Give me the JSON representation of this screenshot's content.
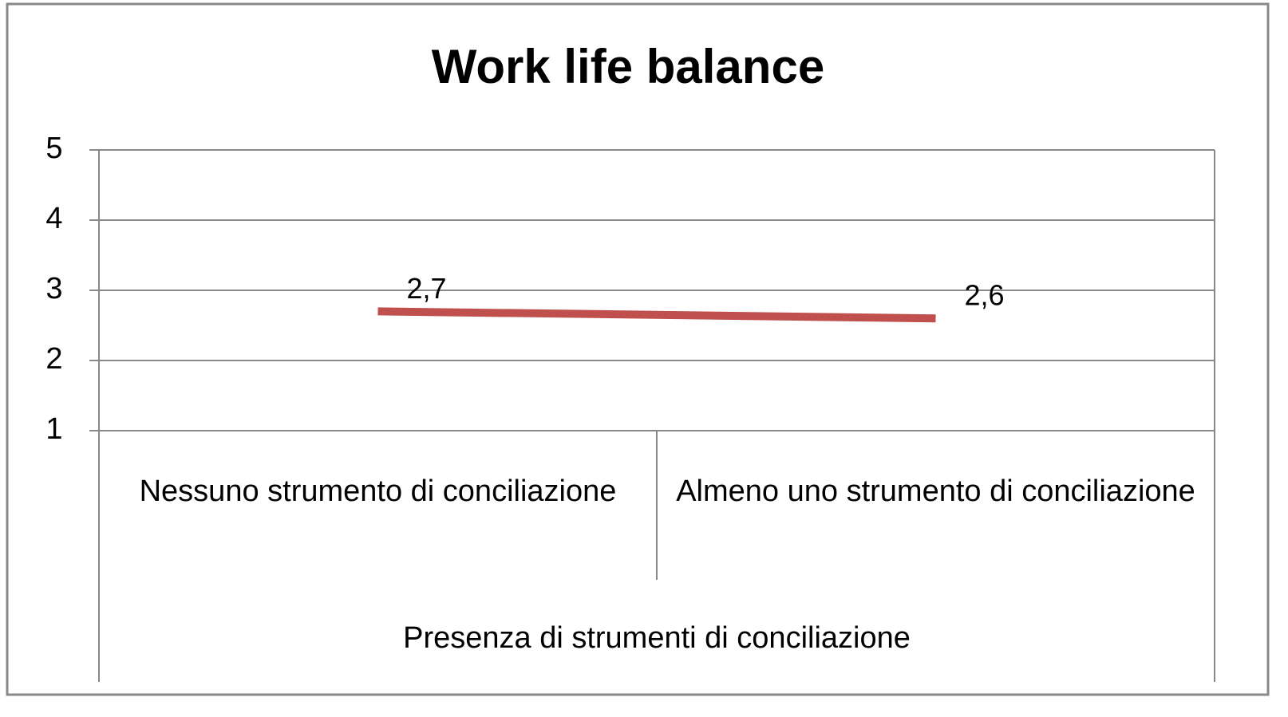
{
  "chart_data": {
    "type": "line",
    "title": "Work life balance",
    "x_label": "Presenza di strumenti di conciliazione",
    "categories": [
      "Nessuno strumento di conciliazione",
      "Almeno uno strumento di conciliazione"
    ],
    "values": [
      2.7,
      2.6
    ],
    "value_labels": [
      "2,7",
      "2,6"
    ],
    "color": "#c0504d",
    "ylim": [
      1,
      5
    ],
    "yticks": [
      1,
      2,
      3,
      4,
      5
    ],
    "grid": true
  }
}
